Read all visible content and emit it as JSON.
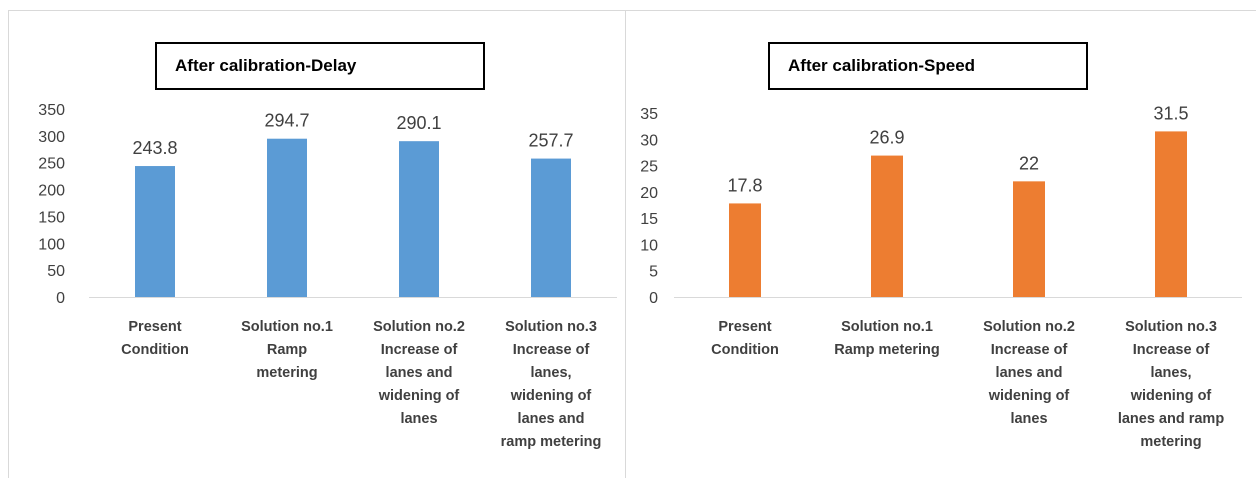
{
  "chart_data": [
    {
      "type": "bar",
      "title": "After calibration-Delay",
      "categories": [
        "Present Condition",
        "Solution no.1 Ramp metering",
        "Solution no.2 Increase of lanes and widening of lanes",
        "Solution no.3 Increase of lanes, widening of lanes and ramp metering"
      ],
      "category_lines": [
        [
          "Present",
          "Condition"
        ],
        [
          "Solution no.1",
          "Ramp",
          "metering"
        ],
        [
          "Solution no.2",
          "Increase of",
          "lanes and",
          "widening of",
          "lanes"
        ],
        [
          "Solution no.3",
          "Increase of",
          "lanes,",
          "widening of",
          "lanes and",
          "ramp metering"
        ]
      ],
      "values": [
        243.8,
        294.7,
        290.1,
        257.7
      ],
      "data_labels": [
        "243.8",
        "294.7",
        "290.1",
        "257.7"
      ],
      "ylim": [
        0,
        350
      ],
      "yticks": [
        0,
        50,
        100,
        150,
        200,
        250,
        300,
        350
      ],
      "color": "#5b9bd5",
      "grid": false
    },
    {
      "type": "bar",
      "title": "After calibration-Speed",
      "categories": [
        "Present Condition",
        "Solution no.1 Ramp metering",
        "Solution no.2 Increase of lanes and widening of lanes",
        "Solution no.3 Increase of lanes, widening of lanes and ramp metering"
      ],
      "category_lines": [
        [
          "Present",
          "Condition"
        ],
        [
          "Solution no.1",
          "Ramp metering"
        ],
        [
          "Solution no.2",
          "Increase of",
          "lanes and",
          "widening of",
          "lanes"
        ],
        [
          "Solution no.3",
          "Increase of",
          "lanes,",
          "widening of",
          "lanes and ramp",
          "metering"
        ]
      ],
      "values": [
        17.8,
        26.9,
        22,
        31.5
      ],
      "data_labels": [
        "17.8",
        "26.9",
        "22",
        "31.5"
      ],
      "ylim": [
        0,
        35
      ],
      "yticks": [
        0,
        5,
        10,
        15,
        20,
        25,
        30,
        35
      ],
      "color": "#ed7d31",
      "grid": false
    }
  ]
}
